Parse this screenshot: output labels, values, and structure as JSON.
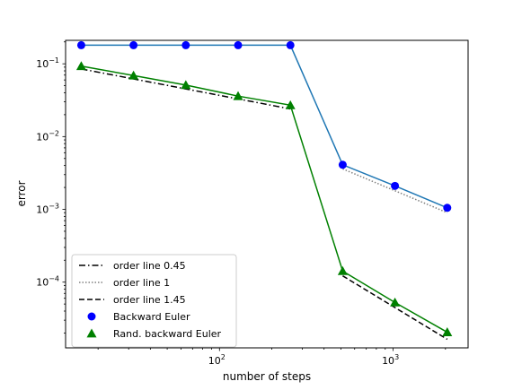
{
  "chart_data": {
    "type": "line",
    "xscale": "log",
    "yscale": "log",
    "xlim": [
      13,
      2700
    ],
    "ylim": [
      1.25e-05,
      0.21
    ],
    "xlabel": "number of steps",
    "ylabel": "error",
    "grid": false,
    "legend_position": "lower-left",
    "x_ticks": [
      {
        "value": 100,
        "base": "10",
        "exp": "2"
      },
      {
        "value": 1000,
        "base": "10",
        "exp": "3"
      }
    ],
    "y_ticks": [
      {
        "value": 0.1,
        "base": "10",
        "exp": "−1"
      },
      {
        "value": 0.01,
        "base": "10",
        "exp": "−2"
      },
      {
        "value": 0.001,
        "base": "10",
        "exp": "−3"
      },
      {
        "value": 0.0001,
        "base": "10",
        "exp": "−4"
      }
    ],
    "series": [
      {
        "name": "Backward Euler",
        "kind": "line+marker",
        "marker": "circle",
        "line_color": "#1f77b4",
        "marker_color": "#0000ff",
        "x": [
          16,
          32,
          64,
          128,
          256,
          512,
          1024,
          2048
        ],
        "y": [
          0.18,
          0.18,
          0.18,
          0.18,
          0.18,
          0.0041,
          0.0021,
          0.00105
        ]
      },
      {
        "name": "Rand. backward Euler",
        "kind": "line+marker",
        "marker": "triangle",
        "line_color": "#008000",
        "marker_color": "#008000",
        "x": [
          16,
          32,
          64,
          128,
          256,
          512,
          1024,
          2048
        ],
        "y": [
          0.093,
          0.069,
          0.051,
          0.036,
          0.027,
          0.000142,
          5.25e-05,
          2.05e-05
        ]
      },
      {
        "name": "order line 0.45",
        "kind": "reference",
        "dash": "dashdot",
        "line_color": "#000000",
        "x": [
          16,
          256
        ],
        "y": [
          0.085,
          0.024
        ]
      },
      {
        "name": "order line 1",
        "kind": "reference",
        "dash": "dotted",
        "line_color": "#808080",
        "x": [
          512,
          2048
        ],
        "y": [
          0.0036,
          0.0009
        ]
      },
      {
        "name": "order line 1.45",
        "kind": "reference",
        "dash": "dashed",
        "line_color": "#000000",
        "x": [
          512,
          2048
        ],
        "y": [
          0.000122,
          1.64e-05
        ]
      }
    ],
    "legend_order": [
      "order line 0.45",
      "order line 1",
      "order line 1.45",
      "Backward Euler",
      "Rand. backward Euler"
    ]
  }
}
